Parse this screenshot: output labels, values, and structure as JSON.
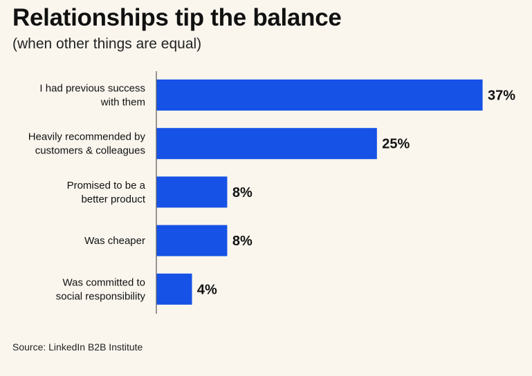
{
  "title": "Relationships tip the balance",
  "subtitle": "(when other things are equal)",
  "source": "Source: LinkedIn B2B Institute",
  "colors": {
    "bar": "#1652e6",
    "axis": "#555555",
    "text": "#111111"
  },
  "chart_data": {
    "type": "bar",
    "orientation": "horizontal",
    "categories": [
      [
        "I had previous success",
        "with them"
      ],
      [
        "Heavily recommended by",
        "customers & colleagues"
      ],
      [
        "Promised to be a",
        "better product"
      ],
      [
        "Was cheaper"
      ],
      [
        "Was committed to",
        "social responsibility"
      ]
    ],
    "values": [
      37,
      25,
      8,
      8,
      4
    ],
    "value_labels": [
      "37%",
      "25%",
      "8%",
      "8%",
      "4%"
    ],
    "unit": "%",
    "xlim": [
      0,
      37
    ],
    "grid": false,
    "legend": "none"
  }
}
